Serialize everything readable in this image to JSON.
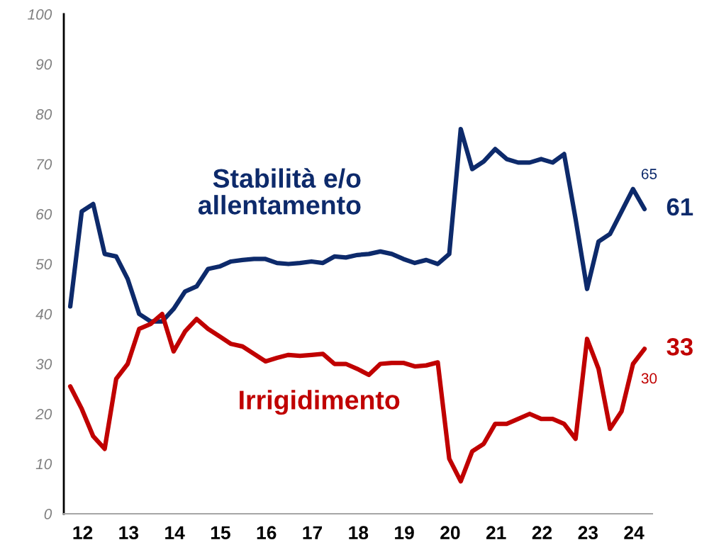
{
  "chart_data": {
    "type": "line",
    "x": [
      12,
      12.25,
      12.5,
      12.75,
      13,
      13.25,
      13.5,
      13.75,
      14,
      14.25,
      14.5,
      14.75,
      15,
      15.25,
      15.5,
      15.75,
      16,
      16.25,
      16.5,
      16.75,
      17,
      17.25,
      17.5,
      17.75,
      18,
      18.25,
      18.5,
      18.75,
      19,
      19.25,
      19.5,
      19.75,
      20,
      20.25,
      20.5,
      20.75,
      21,
      21.25,
      21.5,
      21.75,
      22,
      22.25,
      22.5,
      22.75,
      23,
      23.25,
      23.5,
      23.75,
      24,
      24.25,
      24.5
    ],
    "series": [
      {
        "name": "Stabilità e/o allentamento",
        "color": "#0d2a6b",
        "values": [
          41.5,
          60.5,
          62,
          52,
          51.5,
          47,
          40,
          38.5,
          38.5,
          41,
          44.5,
          45.5,
          49,
          49.5,
          50.5,
          50.8,
          51,
          51,
          50.2,
          50,
          50.2,
          50.5,
          50.2,
          51.5,
          51.3,
          51.8,
          52,
          52.5,
          52,
          51,
          50.2,
          50.8,
          50,
          52,
          77,
          69,
          70.5,
          73,
          71,
          70.3,
          70.3,
          71,
          70.3,
          72,
          59,
          45,
          54.5,
          56,
          60.5,
          65,
          61
        ],
        "value_labels": [
          null,
          null,
          null,
          null,
          null,
          null,
          null,
          null,
          null,
          null,
          null,
          null,
          null,
          null,
          null,
          null,
          null,
          null,
          null,
          null,
          null,
          null,
          null,
          null,
          null,
          null,
          null,
          null,
          null,
          null,
          null,
          null,
          null,
          null,
          null,
          null,
          null,
          null,
          null,
          null,
          null,
          null,
          null,
          null,
          null,
          null,
          null,
          null,
          null,
          "65",
          "61"
        ]
      },
      {
        "name": "Irrigidimento",
        "color": "#c00000",
        "values": [
          25.5,
          21,
          15.5,
          13,
          27,
          30,
          37,
          38,
          40,
          32.5,
          36.5,
          39,
          37,
          35.5,
          34,
          33.5,
          32,
          30.5,
          31.2,
          31.8,
          31.6,
          31.8,
          32,
          30,
          30,
          29,
          27.8,
          30,
          30.2,
          30.2,
          29.5,
          29.7,
          30.3,
          11,
          6.5,
          12.5,
          14,
          18,
          18,
          19,
          20,
          19,
          19,
          18,
          15,
          35,
          29,
          17,
          20.5,
          30,
          33
        ],
        "value_labels": [
          null,
          null,
          null,
          null,
          null,
          null,
          null,
          null,
          null,
          null,
          null,
          null,
          null,
          null,
          null,
          null,
          null,
          null,
          null,
          null,
          null,
          null,
          null,
          null,
          null,
          null,
          null,
          null,
          null,
          null,
          null,
          null,
          null,
          null,
          null,
          null,
          null,
          null,
          null,
          null,
          null,
          null,
          null,
          null,
          null,
          null,
          null,
          null,
          null,
          "30",
          "33"
        ]
      }
    ],
    "xlim": [
      11.86,
      24.67
    ],
    "xticks": [
      {
        "value": 12.27,
        "label": "12"
      },
      {
        "value": 13.27,
        "label": "13"
      },
      {
        "value": 14.27,
        "label": "14"
      },
      {
        "value": 15.27,
        "label": "15"
      },
      {
        "value": 16.27,
        "label": "16"
      },
      {
        "value": 17.27,
        "label": "17"
      },
      {
        "value": 18.27,
        "label": "18"
      },
      {
        "value": 19.27,
        "label": "19"
      },
      {
        "value": 20.27,
        "label": "20"
      },
      {
        "value": 21.27,
        "label": "21"
      },
      {
        "value": 22.27,
        "label": "22"
      },
      {
        "value": 23.27,
        "label": "23"
      },
      {
        "value": 24.27,
        "label": "24"
      }
    ],
    "ylim": [
      0,
      100
    ],
    "yticks": [
      0,
      10,
      20,
      30,
      40,
      50,
      60,
      70,
      80,
      90,
      100
    ],
    "grid": false,
    "legend": false,
    "marker": "none",
    "line_style": "solid"
  }
}
